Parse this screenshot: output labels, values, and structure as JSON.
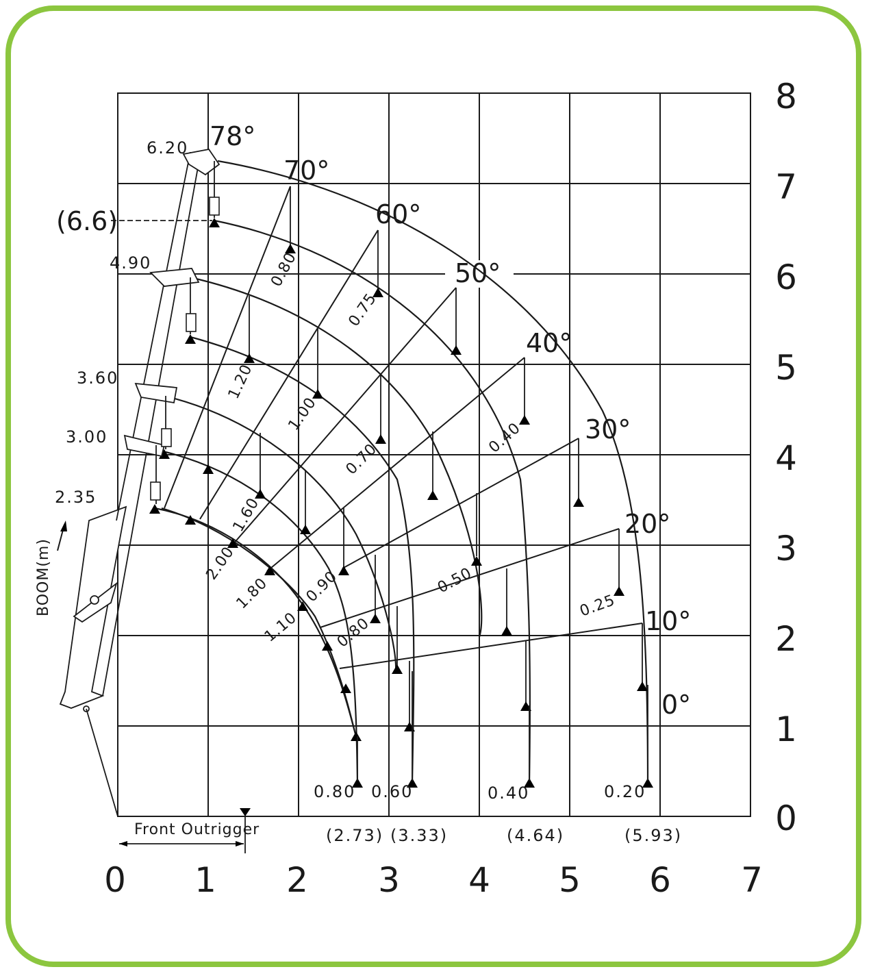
{
  "axes": {
    "x_ticks": [
      "0",
      "1",
      "2",
      "3",
      "4",
      "5",
      "6",
      "7"
    ],
    "y_ticks": [
      "0",
      "1",
      "2",
      "3",
      "4",
      "5",
      "6",
      "7",
      "8"
    ],
    "y_label": "BOOM(m)"
  },
  "boom_lengths": [
    "6.20",
    "4.90",
    "3.60",
    "3.00",
    "2.35"
  ],
  "max_height_label": "(6.6)",
  "angles": [
    "78°",
    "70°",
    "60°",
    "50°",
    "40°",
    "30°",
    "20°",
    "10°",
    "0°"
  ],
  "bottom_loads": [
    "0.80",
    "0.60",
    "0.40",
    "0.20"
  ],
  "reach_labels": [
    "(2.73)",
    "(3.33)",
    "(4.64)",
    "(5.93)"
  ],
  "outrigger_label": "Front Outrigger",
  "loads": {
    "l80": "0.80",
    "l75": "0.75",
    "l40": "0.40",
    "l25": "0.25",
    "l120": "1.20",
    "l100": "1.00",
    "l70": "0.70",
    "l50": "0.50",
    "l160": "1.60",
    "l200": "2.00",
    "l180": "1.80",
    "l90": "0.90",
    "l110": "1.10",
    "l080b": "0.80"
  }
}
